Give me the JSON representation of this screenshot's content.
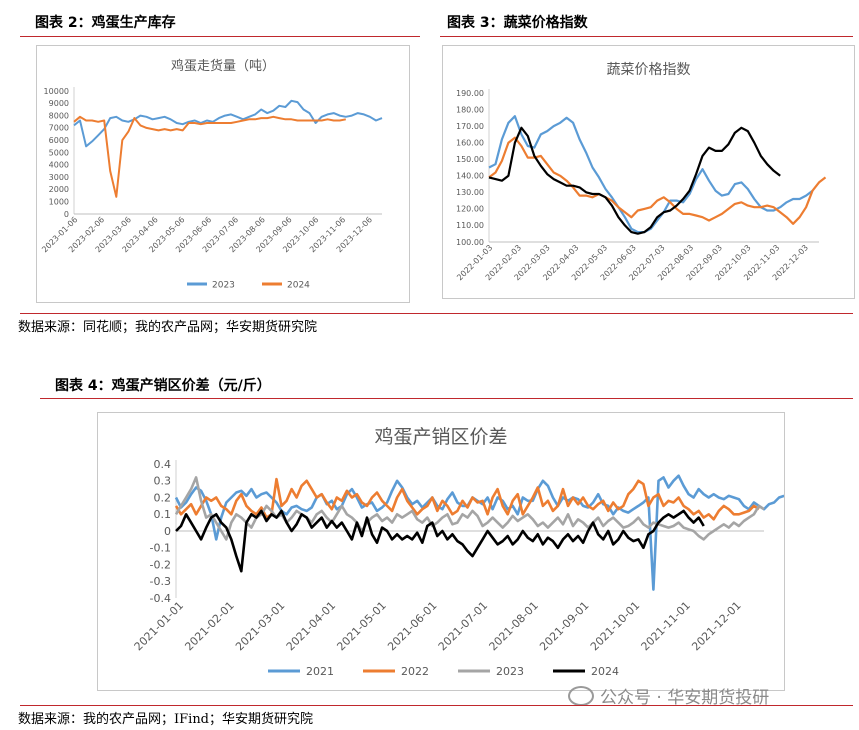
{
  "figures": {
    "fig2_label": "图表 2：鸡蛋生产库存",
    "fig3_label": "图表 3：蔬菜价格指数",
    "fig4_label": "图表 4：鸡蛋产销区价差（元/斤）"
  },
  "sources": {
    "top": "数据来源：同花顺；我的农产品网；华安期货研究院",
    "bottom": "数据来源：我的农产品网；IFind；华安期货研究院"
  },
  "watermark": {
    "text": "公众号 · 华安期货投研"
  },
  "colors": {
    "blue": "#5b9bd5",
    "orange": "#ed7d31",
    "gray": "#a5a5a5",
    "black": "#000000",
    "rule": "#c0282d"
  },
  "chart_data": [
    {
      "id": "egg-shipment",
      "type": "line",
      "title": "鸡蛋走货量（吨）",
      "x_ticks": [
        "2023-01-06",
        "2023-02-06",
        "2023-03-06",
        "2023-04-06",
        "2023-05-06",
        "2023-06-06",
        "2023-07-06",
        "2023-08-06",
        "2023-09-06",
        "2023-10-06",
        "2023-11-06",
        "2023-12-06"
      ],
      "y_ticks": [
        "0",
        "1000",
        "2000",
        "3000",
        "4000",
        "5000",
        "6000",
        "7000",
        "8000",
        "9000",
        "10000"
      ],
      "ylim": [
        0,
        10000
      ],
      "xlim": [
        0,
        51
      ],
      "grid": false,
      "legend_position": "bottom",
      "series": [
        {
          "name": "2023",
          "color": "#5b9bd5",
          "values": [
            7200,
            7600,
            5500,
            5900,
            6400,
            6900,
            7800,
            7900,
            7600,
            7500,
            7700,
            8000,
            7900,
            7700,
            7800,
            7900,
            7700,
            7400,
            7300,
            7500,
            7600,
            7400,
            7600,
            7500,
            7800,
            8000,
            8100,
            7900,
            7700,
            7900,
            8100,
            8500,
            8200,
            8400,
            8800,
            8700,
            9200,
            9100,
            8500,
            8200,
            7400,
            7900,
            8100,
            8200,
            8000,
            7900,
            8000,
            8200,
            8100,
            7900,
            7600,
            7800
          ]
        },
        {
          "name": "2024",
          "color": "#ed7d31",
          "values": [
            7500,
            7900,
            7600,
            7600,
            7500,
            7600,
            3500,
            1400,
            6000,
            6700,
            7800,
            7200,
            7000,
            6900,
            6800,
            6900,
            6800,
            6900,
            6800,
            7400,
            7400,
            7300,
            7400,
            7400,
            7400,
            7400,
            7400,
            7500,
            7600,
            7700,
            7700,
            7800,
            7800,
            7900,
            7800,
            7700,
            7700,
            7600,
            7600,
            7600,
            7600,
            7600,
            7700,
            7600,
            7600,
            7700
          ]
        }
      ]
    },
    {
      "id": "veg-index",
      "type": "line",
      "title": "蔬菜价格指数",
      "x_ticks": [
        "2022-01-03",
        "2022-02-03",
        "2022-03-03",
        "2022-04-03",
        "2022-05-03",
        "2022-06-03",
        "2022-07-03",
        "2022-08-03",
        "2022-09-03",
        "2022-10-03",
        "2022-11-03",
        "2022-12-03"
      ],
      "y_ticks": [
        "100.00",
        "110.00",
        "120.00",
        "130.00",
        "140.00",
        "150.00",
        "160.00",
        "170.00",
        "180.00",
        "190.00"
      ],
      "ylim": [
        100,
        190
      ],
      "xlim": [
        0,
        51
      ],
      "grid": false,
      "series": [
        {
          "name": "blue",
          "color": "#5b9bd5",
          "values": [
            145,
            147,
            162,
            172,
            176,
            165,
            158,
            157,
            165,
            167,
            170,
            172,
            175,
            172,
            162,
            154,
            145,
            139,
            132,
            127,
            121,
            115,
            108,
            106,
            106,
            108,
            113,
            118,
            125,
            125,
            124,
            129,
            138,
            144,
            137,
            131,
            128,
            129,
            135,
            136,
            132,
            126,
            121,
            119,
            119,
            121,
            124,
            126,
            126,
            128,
            131
          ]
        },
        {
          "name": "orange",
          "color": "#ed7d31",
          "values": [
            139,
            142,
            149,
            160,
            163,
            158,
            151,
            151,
            152,
            147,
            142,
            140,
            137,
            133,
            128,
            128,
            127,
            129,
            127,
            125,
            121,
            118,
            115,
            119,
            120,
            121,
            125,
            127,
            124,
            120,
            117,
            117,
            116,
            115,
            113,
            115,
            117,
            120,
            123,
            124,
            122,
            121,
            121,
            122,
            121,
            118,
            115,
            111,
            115,
            121,
            131,
            136,
            139
          ]
        },
        {
          "name": "black",
          "color": "#000000",
          "values": [
            139,
            138,
            137,
            140,
            160,
            169,
            164,
            152,
            146,
            141,
            138,
            136,
            134,
            134,
            133,
            130,
            129,
            129,
            127,
            122,
            115,
            110,
            106,
            105,
            106,
            109,
            115,
            118,
            119,
            122,
            126,
            131,
            141,
            152,
            157,
            155,
            155,
            159,
            166,
            169,
            167,
            160,
            152,
            147,
            143,
            140
          ]
        }
      ]
    },
    {
      "id": "egg-price-spread",
      "type": "line",
      "title": "鸡蛋产销区价差",
      "x_ticks": [
        "2021-01-01",
        "2021-02-01",
        "2021-03-01",
        "2021-04-01",
        "2021-05-01",
        "2021-06-01",
        "2021-07-01",
        "2021-08-01",
        "2021-09-01",
        "2021-10-01",
        "2021-11-01",
        "2021-12-01"
      ],
      "y_ticks": [
        "-0.4",
        "-0.3",
        "-0.2",
        "-0.1",
        "0",
        "0.1",
        "0.2",
        "0.3",
        "0.4"
      ],
      "ylim": [
        -0.4,
        0.4
      ],
      "xlim": [
        0,
        350
      ],
      "grid": false,
      "legend_position": "bottom",
      "series": [
        {
          "name": "2021",
          "color": "#5b9bd5",
          "values": [
            0.2,
            0.14,
            0.17,
            0.22,
            0.26,
            0.24,
            0.18,
            0.1,
            -0.05,
            0.08,
            0.17,
            0.2,
            0.23,
            0.24,
            0.21,
            0.25,
            0.2,
            0.22,
            0.23,
            0.2,
            0.17,
            0.12,
            0.1,
            0.14,
            0.15,
            0.13,
            0.12,
            0.14,
            0.2,
            0.22,
            0.16,
            0.18,
            0.13,
            0.15,
            0.22,
            0.25,
            0.2,
            0.14,
            0.16,
            0.17,
            0.12,
            0.14,
            0.17,
            0.24,
            0.3,
            0.26,
            0.2,
            0.16,
            0.18,
            0.14,
            0.17,
            0.2,
            0.15,
            0.13,
            0.19,
            0.23,
            0.17,
            0.15,
            0.15,
            0.2,
            0.18,
            0.16,
            0.2,
            0.13,
            0.2,
            0.18,
            0.13,
            0.15,
            0.1,
            0.2,
            0.18,
            0.18,
            0.25,
            0.3,
            0.27,
            0.2,
            0.15,
            0.2,
            0.18,
            0.2,
            0.19,
            0.15,
            0.14,
            0.17,
            0.22,
            0.16,
            0.15,
            0.1,
            0.14,
            0.12,
            0.11,
            0.13,
            0.15,
            0.17,
            0.2,
            -0.35,
            0.3,
            0.32,
            0.26,
            0.3,
            0.33,
            0.27,
            0.22,
            0.2,
            0.25,
            0.22,
            0.2,
            0.22,
            0.2,
            0.19,
            0.21,
            0.2,
            0.19,
            0.15,
            0.13,
            0.17,
            0.15,
            0.13,
            0.16,
            0.17,
            0.2,
            0.21
          ]
        },
        {
          "name": "2022",
          "color": "#ed7d31",
          "values": [
            0.15,
            0.1,
            0.13,
            0.16,
            0.1,
            0.15,
            0.2,
            0.18,
            0.2,
            0.15,
            0.13,
            0.1,
            0.18,
            0.22,
            0.15,
            0.12,
            0.1,
            0.14,
            0.08,
            0.1,
            0.31,
            0.15,
            0.18,
            0.25,
            0.2,
            0.27,
            0.3,
            0.25,
            0.2,
            0.22,
            0.17,
            0.13,
            0.2,
            0.18,
            0.24,
            0.2,
            0.22,
            0.17,
            0.15,
            0.2,
            0.23,
            0.18,
            0.15,
            0.12,
            0.2,
            0.25,
            0.18,
            0.14,
            0.1,
            0.13,
            0.15,
            0.2,
            0.12,
            0.18,
            0.15,
            0.1,
            0.12,
            0.18,
            0.14,
            0.2,
            0.17,
            0.18,
            0.1,
            0.2,
            0.25,
            0.15,
            0.1,
            0.18,
            0.22,
            0.1,
            0.15,
            0.2,
            0.26,
            0.15,
            0.18,
            0.12,
            0.15,
            0.25,
            0.15,
            0.2,
            0.16,
            0.2,
            0.15,
            0.13,
            0.16,
            0.18,
            0.12,
            0.17,
            0.13,
            0.15,
            0.22,
            0.25,
            0.3,
            0.28,
            0.15,
            0.2,
            0.22,
            0.15,
            0.18,
            0.17,
            0.2,
            0.15,
            0.13,
            0.1,
            0.12,
            0.08,
            0.1,
            0.07,
            0.12,
            0.15,
            0.13,
            0.1,
            0.1,
            0.11,
            0.12,
            0.15,
            0.13
          ]
        },
        {
          "name": "2023",
          "color": "#a5a5a5",
          "values": [
            0.1,
            0.15,
            0.2,
            0.25,
            0.32,
            0.18,
            0.08,
            0.1,
            0.05,
            0,
            -0.05,
            0.05,
            0.1,
            0.08,
            0.05,
            0.02,
            0.08,
            0.1,
            0.15,
            0.12,
            0.08,
            0.1,
            0.05,
            0.08,
            0.12,
            0.1,
            0.08,
            0.05,
            0.1,
            0.12,
            0.08,
            0.05,
            0.1,
            0.15,
            0.1,
            0.08,
            0.05,
            0,
            0.05,
            0.08,
            0.1,
            0.06,
            0.08,
            0.05,
            0.1,
            0.08,
            0.1,
            0.12,
            0.07,
            0.05,
            0.08,
            0.03,
            0.05,
            0.08,
            0.1,
            0.04,
            0.05,
            0.1,
            0.08,
            0.12,
            0.09,
            0.03,
            0.05,
            0.08,
            0.05,
            0.02,
            0.05,
            0.09,
            0.06,
            0.08,
            0.1,
            0.07,
            0.03,
            0.05,
            0.02,
            0.05,
            0.08,
            0.04,
            0.1,
            0.03,
            0.07,
            0.05,
            0.02,
            0.05,
            0.08,
            0.03,
            0.06,
            0.08,
            0.05,
            0.02,
            0.03,
            0.05,
            0.08,
            0.04,
            0.02,
            0.05,
            0.04,
            0.03,
            0.02,
            0.03,
            0.05,
            0.02,
            0.01,
            0,
            -0.03,
            -0.05,
            -0.02,
            0,
            0.02,
            0.04,
            0.02,
            0.05,
            0.03,
            0.06,
            0.08,
            0.1,
            0.15,
            0.13
          ]
        },
        {
          "name": "2024",
          "color": "#000000",
          "values": [
            0,
            0.03,
            0.1,
            0.05,
            0,
            -0.05,
            0.02,
            0.08,
            0.1,
            0.05,
            0.02,
            -0.05,
            -0.15,
            -0.24,
            0.05,
            0.1,
            0.08,
            0.12,
            0.06,
            0.1,
            0.08,
            0.12,
            0.05,
            0,
            0.04,
            0.1,
            0.08,
            0.02,
            0.05,
            0.08,
            0.02,
            0.06,
            0.02,
            0.05,
            0,
            -0.05,
            0.05,
            -0.03,
            0.08,
            -0.02,
            -0.07,
            0.02,
            0,
            -0.05,
            -0.02,
            -0.05,
            -0.03,
            -0.05,
            -0.01,
            -0.07,
            0.03,
            0.05,
            -0.03,
            0,
            -0.05,
            -0.02,
            -0.06,
            -0.08,
            -0.12,
            -0.15,
            -0.1,
            -0.05,
            0,
            -0.04,
            -0.08,
            -0.06,
            -0.03,
            -0.08,
            -0.05,
            0,
            -0.04,
            -0.06,
            -0.02,
            -0.08,
            -0.04,
            -0.06,
            -0.1,
            -0.05,
            -0.02,
            -0.06,
            -0.03,
            -0.07,
            0,
            0.05,
            -0.02,
            -0.05,
            0,
            -0.08,
            -0.05,
            0,
            -0.04,
            -0.06,
            -0.05,
            -0.1,
            -0.02,
            0,
            0.05,
            0.08,
            0.1,
            0.08,
            0.1,
            0.12,
            0.08,
            0.05,
            0.08,
            0.03
          ]
        }
      ]
    }
  ]
}
